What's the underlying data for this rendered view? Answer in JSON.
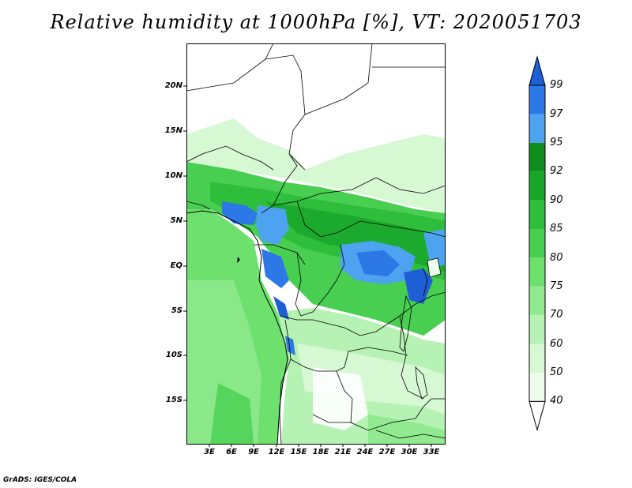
{
  "title": "Relative humidity at 1000hPa [%], VT: 2020051703",
  "map": {
    "lat_labels": [
      "20N",
      "15N",
      "10N",
      "5N",
      "EQ",
      "5S",
      "10S",
      "15S"
    ],
    "lon_labels": [
      "3E",
      "6E",
      "9E",
      "12E",
      "15E",
      "18E",
      "21E",
      "24E",
      "27E",
      "30E",
      "33E"
    ]
  },
  "colorbar": {
    "levels": [
      "99",
      "97",
      "95",
      "92",
      "90",
      "85",
      "80",
      "75",
      "70",
      "60",
      "50",
      "40"
    ],
    "colors": [
      "#1e5fd6",
      "#2b78e6",
      "#4da3f0",
      "#0e8c1e",
      "#18a72a",
      "#2fbd3c",
      "#48cf52",
      "#6de06e",
      "#92ea90",
      "#b6f2b3",
      "#d6f8d3",
      "#eefcec",
      "#ffffff"
    ]
  },
  "credit": "GrADS: IGES/COLA"
}
